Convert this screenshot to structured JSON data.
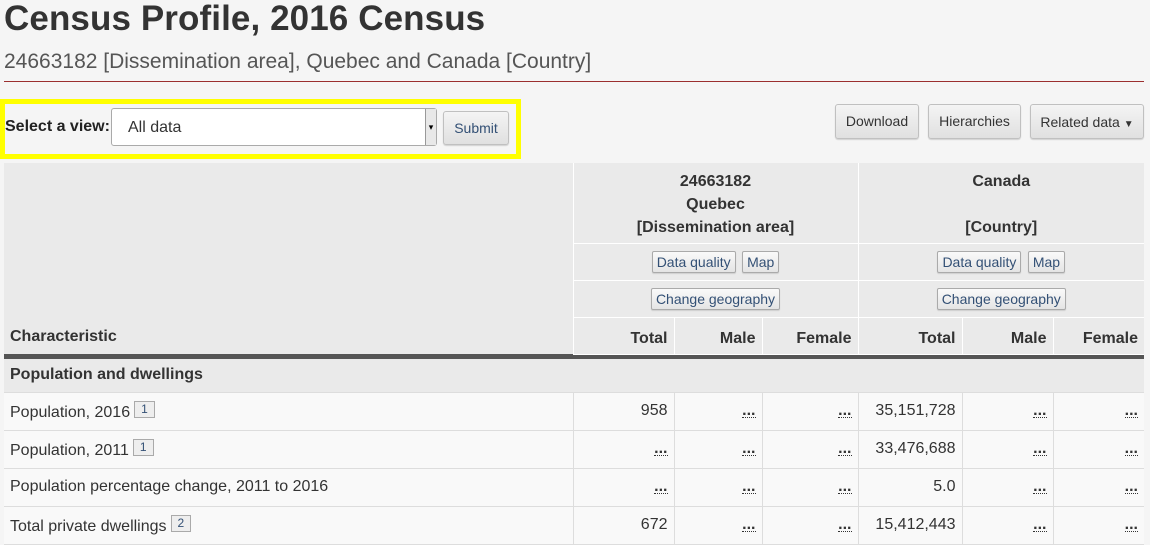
{
  "header": {
    "title": "Census Profile, 2016 Census",
    "subtitle": "24663182 [Dissemination area], Quebec and Canada [Country]"
  },
  "view_selector": {
    "label": "Select a view:",
    "selected": "All data",
    "submit_label": "Submit"
  },
  "toolbar": {
    "download": "Download",
    "hierarchies": "Hierarchies",
    "related_data": "Related data"
  },
  "table": {
    "geo1": {
      "line1": "24663182",
      "line2": "Quebec",
      "line3": "[Dissemination area]"
    },
    "geo2": {
      "line1": "Canada",
      "line2": "",
      "line3": "[Country]"
    },
    "data_quality": "Data quality",
    "map": "Map",
    "change_geography": "Change geography",
    "characteristic": "Characteristic",
    "columns": [
      "Total",
      "Male",
      "Female",
      "Total",
      "Male",
      "Female"
    ],
    "section": "Population and dwellings",
    "rows": [
      {
        "label": "Population, 2016",
        "footnote": "1",
        "values": [
          "958",
          "...",
          "...",
          "35,151,728",
          "...",
          "..."
        ]
      },
      {
        "label": "Population, 2011",
        "footnote": "1",
        "values": [
          "...",
          "...",
          "...",
          "33,476,688",
          "...",
          "..."
        ]
      },
      {
        "label": "Population percentage change, 2011 to 2016",
        "footnote": "",
        "values": [
          "...",
          "...",
          "...",
          "5.0",
          "...",
          "..."
        ]
      },
      {
        "label": "Total private dwellings",
        "footnote": "2",
        "values": [
          "672",
          "...",
          "...",
          "15,412,443",
          "...",
          "..."
        ]
      }
    ]
  },
  "colors": {
    "highlight": "#ffff00",
    "rule": "#9b2f2f",
    "link": "#335075"
  }
}
